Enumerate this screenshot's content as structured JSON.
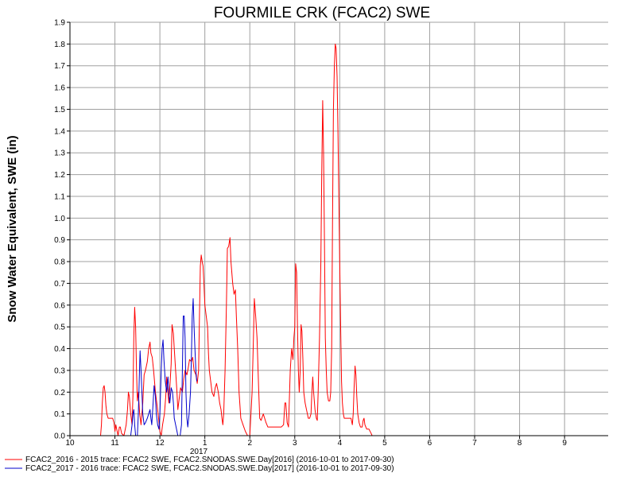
{
  "chart_data": {
    "type": "line",
    "title": "FOURMILE CRK (FCAC2) SWE",
    "xlabel": "",
    "ylabel": "Snow Water Equivalent, SWE (in)",
    "ylim": [
      0,
      1.9
    ],
    "xlim": [
      10,
      10.98
    ],
    "yticks": [
      "0.0",
      "0.1",
      "0.2",
      "0.3",
      "0.4",
      "0.5",
      "0.6",
      "0.7",
      "0.8",
      "0.9",
      "1.0",
      "1.1",
      "1.2",
      "1.3",
      "1.4",
      "1.5",
      "1.6",
      "1.7",
      "1.8",
      "1.9"
    ],
    "xticks": [
      {
        "v": 10,
        "label": "10"
      },
      {
        "v": 11,
        "label": "11"
      },
      {
        "v": 12,
        "label": "12"
      },
      {
        "v": 13,
        "label": "1"
      },
      {
        "v": 14,
        "label": "2"
      },
      {
        "v": 15,
        "label": "3"
      },
      {
        "v": 16,
        "label": "4"
      },
      {
        "v": 17,
        "label": "5"
      },
      {
        "v": 18,
        "label": "6"
      },
      {
        "v": 19,
        "label": "7"
      },
      {
        "v": 20,
        "label": "8"
      },
      {
        "v": 21,
        "label": "9"
      }
    ],
    "year_label": "2017",
    "grid": true,
    "legend_position": "bottom",
    "series": [
      {
        "name": "FCAC2_2016 - 2015 trace: FCAC2 SWE, FCAC2.SNODAS.SWE.Day[2016] (2016-10-01 to 2017-09-30)",
        "color": "#ff0000",
        "points": [
          [
            10.68,
            0
          ],
          [
            10.7,
            0.05
          ],
          [
            10.72,
            0.15
          ],
          [
            10.74,
            0.22
          ],
          [
            10.76,
            0.23
          ],
          [
            10.78,
            0.2
          ],
          [
            10.8,
            0.14
          ],
          [
            10.82,
            0.1
          ],
          [
            10.85,
            0.08
          ],
          [
            10.9,
            0.08
          ],
          [
            10.95,
            0.08
          ],
          [
            10.98,
            0.06
          ],
          [
            11.0,
            0.02
          ],
          [
            11.02,
            0.05
          ],
          [
            11.04,
            0.03
          ],
          [
            11.07,
            0.0
          ],
          [
            11.1,
            0.04
          ],
          [
            11.12,
            0.04
          ],
          [
            11.15,
            0.01
          ],
          [
            11.2,
            0.0
          ],
          [
            11.25,
            0.05
          ],
          [
            11.28,
            0.12
          ],
          [
            11.3,
            0.2
          ],
          [
            11.32,
            0.18
          ],
          [
            11.35,
            0.1
          ],
          [
            11.38,
            0.05
          ],
          [
            11.4,
            0.18
          ],
          [
            11.42,
            0.45
          ],
          [
            11.44,
            0.59
          ],
          [
            11.46,
            0.5
          ],
          [
            11.48,
            0.3
          ],
          [
            11.5,
            0.16
          ],
          [
            11.52,
            0.2
          ],
          [
            11.55,
            0.1
          ],
          [
            11.58,
            0.05
          ],
          [
            11.62,
            0.15
          ],
          [
            11.65,
            0.28
          ],
          [
            11.68,
            0.3
          ],
          [
            11.72,
            0.34
          ],
          [
            11.75,
            0.4
          ],
          [
            11.78,
            0.43
          ],
          [
            11.8,
            0.38
          ],
          [
            11.83,
            0.36
          ],
          [
            11.86,
            0.3
          ],
          [
            11.9,
            0.2
          ],
          [
            11.93,
            0.15
          ],
          [
            11.96,
            0.1
          ],
          [
            12.0,
            0.02
          ],
          [
            12.03,
            0.0
          ],
          [
            12.06,
            0.05
          ],
          [
            12.1,
            0.1
          ],
          [
            12.13,
            0.18
          ],
          [
            12.15,
            0.27
          ],
          [
            12.17,
            0.22
          ],
          [
            12.2,
            0.15
          ],
          [
            12.22,
            0.22
          ],
          [
            12.25,
            0.33
          ],
          [
            12.27,
            0.51
          ],
          [
            12.3,
            0.47
          ],
          [
            12.32,
            0.4
          ],
          [
            12.35,
            0.3
          ],
          [
            12.38,
            0.2
          ],
          [
            12.4,
            0.12
          ],
          [
            12.43,
            0.17
          ],
          [
            12.46,
            0.22
          ],
          [
            12.5,
            0.2
          ],
          [
            12.53,
            0.26
          ],
          [
            12.56,
            0.3
          ],
          [
            12.6,
            0.28
          ],
          [
            12.63,
            0.31
          ],
          [
            12.66,
            0.35
          ],
          [
            12.7,
            0.34
          ],
          [
            12.73,
            0.36
          ],
          [
            12.76,
            0.3
          ],
          [
            12.8,
            0.28
          ],
          [
            12.83,
            0.24
          ],
          [
            12.86,
            0.3
          ],
          [
            12.88,
            0.55
          ],
          [
            12.9,
            0.78
          ],
          [
            12.92,
            0.83
          ],
          [
            12.94,
            0.8
          ],
          [
            12.96,
            0.78
          ],
          [
            12.98,
            0.7
          ],
          [
            13.0,
            0.6
          ],
          [
            13.03,
            0.55
          ],
          [
            13.06,
            0.5
          ],
          [
            13.08,
            0.38
          ],
          [
            13.1,
            0.3
          ],
          [
            13.13,
            0.25
          ],
          [
            13.16,
            0.2
          ],
          [
            13.2,
            0.18
          ],
          [
            13.23,
            0.22
          ],
          [
            13.26,
            0.24
          ],
          [
            13.3,
            0.2
          ],
          [
            13.33,
            0.15
          ],
          [
            13.36,
            0.12
          ],
          [
            13.38,
            0.08
          ],
          [
            13.4,
            0.05
          ],
          [
            13.42,
            0.1
          ],
          [
            13.45,
            0.3
          ],
          [
            13.48,
            0.6
          ],
          [
            13.5,
            0.86
          ],
          [
            13.53,
            0.87
          ],
          [
            13.56,
            0.91
          ],
          [
            13.58,
            0.8
          ],
          [
            13.62,
            0.7
          ],
          [
            13.65,
            0.65
          ],
          [
            13.68,
            0.67
          ],
          [
            13.7,
            0.55
          ],
          [
            13.73,
            0.4
          ],
          [
            13.76,
            0.2
          ],
          [
            13.8,
            0.08
          ],
          [
            13.85,
            0.05
          ],
          [
            13.9,
            0.02
          ],
          [
            13.95,
            0.0
          ],
          [
            14.0,
            0.0
          ],
          [
            14.05,
            0.2
          ],
          [
            14.08,
            0.45
          ],
          [
            14.1,
            0.63
          ],
          [
            14.13,
            0.55
          ],
          [
            14.16,
            0.45
          ],
          [
            14.2,
            0.2
          ],
          [
            14.22,
            0.08
          ],
          [
            14.25,
            0.07
          ],
          [
            14.3,
            0.1
          ],
          [
            14.33,
            0.08
          ],
          [
            14.36,
            0.06
          ],
          [
            14.4,
            0.04
          ],
          [
            14.5,
            0.04
          ],
          [
            14.6,
            0.04
          ],
          [
            14.7,
            0.04
          ],
          [
            14.75,
            0.05
          ],
          [
            14.78,
            0.15
          ],
          [
            14.8,
            0.15
          ],
          [
            14.83,
            0.06
          ],
          [
            14.86,
            0.04
          ],
          [
            14.9,
            0.3
          ],
          [
            14.93,
            0.4
          ],
          [
            14.96,
            0.35
          ],
          [
            14.98,
            0.45
          ],
          [
            15.0,
            0.5
          ],
          [
            15.02,
            0.79
          ],
          [
            15.04,
            0.75
          ],
          [
            15.06,
            0.5
          ],
          [
            15.08,
            0.3
          ],
          [
            15.1,
            0.2
          ],
          [
            15.12,
            0.3
          ],
          [
            15.14,
            0.51
          ],
          [
            15.16,
            0.48
          ],
          [
            15.18,
            0.35
          ],
          [
            15.2,
            0.2
          ],
          [
            15.23,
            0.15
          ],
          [
            15.26,
            0.12
          ],
          [
            15.3,
            0.08
          ],
          [
            15.33,
            0.08
          ],
          [
            15.36,
            0.1
          ],
          [
            15.38,
            0.2
          ],
          [
            15.4,
            0.27
          ],
          [
            15.42,
            0.2
          ],
          [
            15.45,
            0.12
          ],
          [
            15.48,
            0.08
          ],
          [
            15.5,
            0.07
          ],
          [
            15.52,
            0.2
          ],
          [
            15.55,
            0.45
          ],
          [
            15.58,
            0.8
          ],
          [
            15.6,
            1.2
          ],
          [
            15.62,
            1.54
          ],
          [
            15.64,
            1.3
          ],
          [
            15.66,
            0.9
          ],
          [
            15.68,
            0.45
          ],
          [
            15.7,
            0.3
          ],
          [
            15.72,
            0.2
          ],
          [
            15.75,
            0.16
          ],
          [
            15.78,
            0.16
          ],
          [
            15.8,
            0.2
          ],
          [
            15.82,
            0.4
          ],
          [
            15.84,
            1.0
          ],
          [
            15.86,
            1.5
          ],
          [
            15.88,
            1.7
          ],
          [
            15.9,
            1.8
          ],
          [
            15.92,
            1.78
          ],
          [
            15.94,
            1.65
          ],
          [
            15.96,
            1.4
          ],
          [
            15.98,
            1.1
          ],
          [
            16.0,
            0.8
          ],
          [
            16.02,
            0.5
          ],
          [
            16.04,
            0.25
          ],
          [
            16.06,
            0.15
          ],
          [
            16.08,
            0.1
          ],
          [
            16.1,
            0.08
          ],
          [
            16.15,
            0.08
          ],
          [
            16.2,
            0.08
          ],
          [
            16.25,
            0.08
          ],
          [
            16.28,
            0.05
          ],
          [
            16.3,
            0.1
          ],
          [
            16.32,
            0.22
          ],
          [
            16.34,
            0.32
          ],
          [
            16.36,
            0.28
          ],
          [
            16.38,
            0.18
          ],
          [
            16.4,
            0.1
          ],
          [
            16.43,
            0.06
          ],
          [
            16.46,
            0.04
          ],
          [
            16.5,
            0.04
          ],
          [
            16.52,
            0.07
          ],
          [
            16.54,
            0.08
          ],
          [
            16.56,
            0.05
          ],
          [
            16.6,
            0.03
          ],
          [
            16.65,
            0.03
          ],
          [
            16.7,
            0.01
          ],
          [
            16.72,
            0.0
          ]
        ]
      },
      {
        "name": "FCAC2_2017 - 2016 trace: FCAC2 SWE, FCAC2.SNODAS.SWE.Day[2017] (2016-10-01 to 2017-09-30)",
        "color": "#0000cc",
        "points": [
          [
            11.35,
            0
          ],
          [
            11.38,
            0.05
          ],
          [
            11.4,
            0.1
          ],
          [
            11.42,
            0.12
          ],
          [
            11.44,
            0.05
          ],
          [
            11.46,
            0.0
          ],
          [
            11.5,
            0.0
          ],
          [
            11.52,
            0.1
          ],
          [
            11.54,
            0.25
          ],
          [
            11.56,
            0.39
          ],
          [
            11.58,
            0.3
          ],
          [
            11.6,
            0.2
          ],
          [
            11.62,
            0.1
          ],
          [
            11.65,
            0.05
          ],
          [
            11.68,
            0.06
          ],
          [
            11.72,
            0.08
          ],
          [
            11.75,
            0.1
          ],
          [
            11.78,
            0.12
          ],
          [
            11.8,
            0.08
          ],
          [
            11.82,
            0.05
          ],
          [
            11.85,
            0.15
          ],
          [
            11.87,
            0.23
          ],
          [
            11.9,
            0.18
          ],
          [
            11.92,
            0.1
          ],
          [
            11.95,
            0.05
          ],
          [
            11.98,
            0.03
          ],
          [
            12.0,
            0.1
          ],
          [
            12.03,
            0.3
          ],
          [
            12.05,
            0.4
          ],
          [
            12.07,
            0.44
          ],
          [
            12.09,
            0.35
          ],
          [
            12.12,
            0.25
          ],
          [
            12.15,
            0.2
          ],
          [
            12.18,
            0.27
          ],
          [
            12.2,
            0.2
          ],
          [
            12.22,
            0.15
          ],
          [
            12.25,
            0.22
          ],
          [
            12.28,
            0.2
          ],
          [
            12.3,
            0.15
          ],
          [
            12.32,
            0.08
          ],
          [
            12.35,
            0.05
          ],
          [
            12.38,
            0.02
          ],
          [
            12.4,
            0.0
          ],
          [
            12.45,
            0.0
          ],
          [
            12.48,
            0.05
          ],
          [
            12.5,
            0.3
          ],
          [
            12.52,
            0.55
          ],
          [
            12.54,
            0.55
          ],
          [
            12.56,
            0.45
          ],
          [
            12.58,
            0.2
          ],
          [
            12.6,
            0.08
          ],
          [
            12.62,
            0.04
          ],
          [
            12.65,
            0.1
          ],
          [
            12.68,
            0.2
          ],
          [
            12.7,
            0.35
          ],
          [
            12.72,
            0.55
          ],
          [
            12.74,
            0.63
          ],
          [
            12.76,
            0.5
          ],
          [
            12.78,
            0.4
          ],
          [
            12.8,
            0.3
          ],
          [
            12.82,
            0.25
          ]
        ]
      }
    ]
  }
}
